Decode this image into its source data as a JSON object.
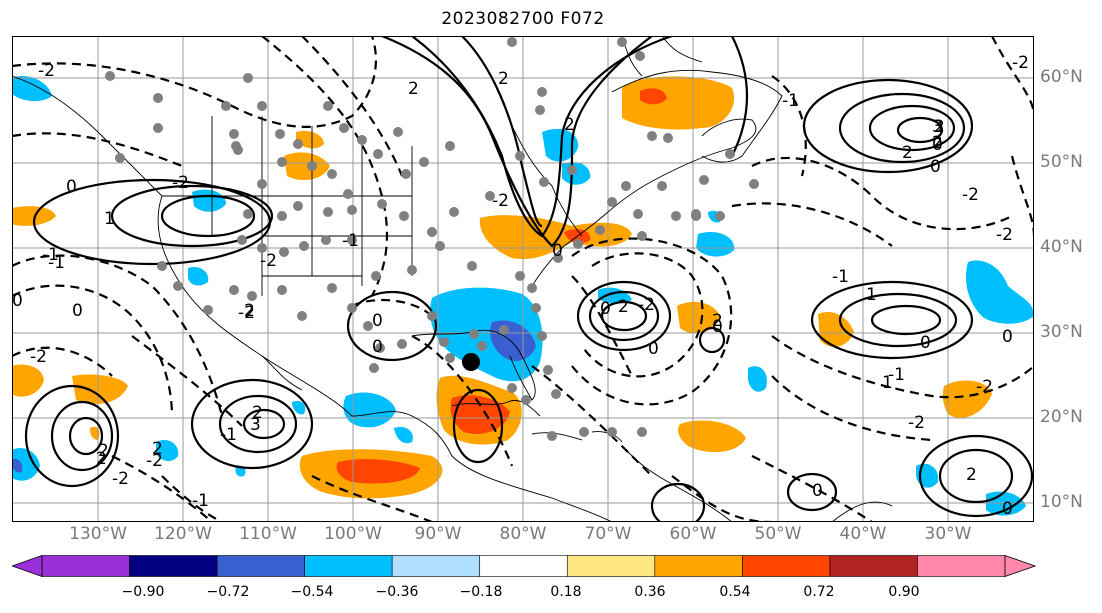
{
  "title": "2023082700 F072",
  "lat_labels": [
    "60°N",
    "50°N",
    "40°N",
    "30°N",
    "20°N",
    "10°N"
  ],
  "lon_labels": [
    "130°W",
    "120°W",
    "110°W",
    "100°W",
    "90°W",
    "80°W",
    "70°W",
    "60°W",
    "50°W",
    "40°W",
    "30°W"
  ],
  "colorbar": {
    "tick_labels": [
      "−0.90",
      "−0.72",
      "−0.54",
      "−0.36",
      "−0.18",
      "0.18",
      "0.36",
      "0.54",
      "0.72",
      "0.90"
    ],
    "colors": {
      "under": "#9b30d9",
      "bins": [
        "#9b30d9",
        "#000080",
        "#3a5fd0",
        "#00bfff",
        "#b0e0ff",
        "#ffffff",
        "#ffe680",
        "#ffa500",
        "#ff4500",
        "#b22222",
        "#ff88aa"
      ],
      "over": "#ff88aa"
    }
  },
  "contour_labels": [
    "-2",
    "-1",
    "0",
    "1",
    "2",
    "3",
    "-2",
    "0",
    "0",
    "1",
    "2",
    "-2",
    "-1",
    "2",
    "3",
    "2",
    "0",
    "-2",
    "0",
    "2",
    "0",
    "-1",
    "2",
    "-2",
    "0",
    "2",
    "-2",
    "1",
    "0",
    "-2",
    "2",
    "2",
    "0",
    "-1",
    "0",
    "-2",
    "-2",
    "-2",
    "-1",
    "0",
    "2",
    "-1",
    "0",
    "-2",
    "-2",
    "2",
    "0",
    "0",
    "-2",
    "2",
    "2",
    "-1",
    "2",
    "-1",
    "-2",
    "0"
  ],
  "contour_label_alt": [
    "0",
    "-2",
    "-1",
    "2",
    "-2"
  ],
  "colors": {
    "land_border": "#000000",
    "grid": "#9a9a9a",
    "positive_fill_orange": "#ffa500",
    "positive_fill_red": "#ff4500",
    "negative_fill_blue": "#00bfff",
    "negative_fill_dark": "#3a5fd0",
    "station_gray": "#808080"
  },
  "marker": "storm-center"
}
